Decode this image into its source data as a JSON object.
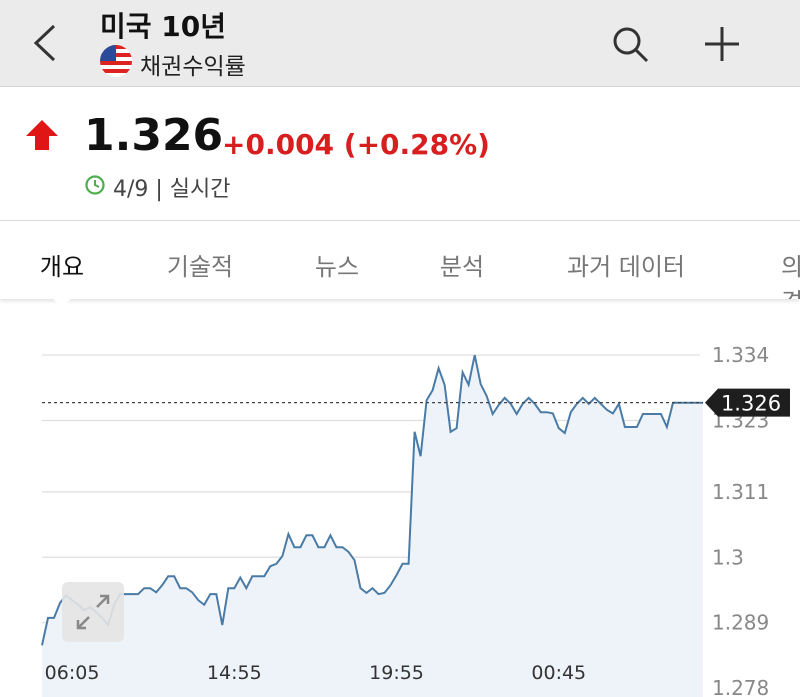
{
  "header": {
    "title": "미국 10년",
    "subtitle": "채권수익률"
  },
  "quote": {
    "price": "1.326",
    "change": "+0.004 (+0.28%)",
    "date": "4/9 | 실시간"
  },
  "tabs": [
    "개요",
    "기술적",
    "뉴스",
    "분석",
    "과거 데이터",
    "의견"
  ],
  "chart_data": {
    "type": "line",
    "color": "#4a7ba6",
    "values": [
      1.2852,
      1.2898,
      1.2898,
      1.2923,
      1.2936,
      1.2928,
      1.292,
      1.2911,
      1.2916,
      1.2908,
      1.2898,
      1.2886,
      1.292,
      1.2938,
      1.2938,
      1.2938,
      1.2938,
      1.2948,
      1.2948,
      1.2941,
      1.2953,
      1.2968,
      1.2968,
      1.2948,
      1.2948,
      1.2941,
      1.2928,
      1.292,
      1.2938,
      1.2938,
      1.2886,
      1.2948,
      1.2948,
      1.2966,
      1.2948,
      1.2968,
      1.2968,
      1.2968,
      1.2985,
      1.2989,
      1.3002,
      1.3039,
      1.3017,
      1.3017,
      1.3037,
      1.3037,
      1.3017,
      1.3017,
      1.3037,
      1.3017,
      1.3017,
      1.3009,
      1.2995,
      1.2948,
      1.294,
      1.2948,
      1.2938,
      1.294,
      1.2953,
      1.297,
      1.2989,
      1.2989,
      1.3211,
      1.317,
      1.3264,
      1.3281,
      1.3318,
      1.329,
      1.3211,
      1.3217,
      1.3311,
      1.329,
      1.334,
      1.3291,
      1.3271,
      1.3241,
      1.3256,
      1.3268,
      1.3258,
      1.3241,
      1.3258,
      1.3268,
      1.3258,
      1.3244,
      1.3244,
      1.3242,
      1.3217,
      1.3209,
      1.3244,
      1.3258,
      1.3268,
      1.3258,
      1.3268,
      1.3258,
      1.3248,
      1.3242,
      1.3258,
      1.3219,
      1.3219,
      1.3219,
      1.3241,
      1.3241,
      1.3241,
      1.3241,
      1.3219,
      1.326,
      1.326,
      1.326,
      1.326,
      1.326,
      1.326
    ],
    "current_value": 1.326,
    "ylim": [
      1.2765,
      1.3399
    ],
    "yticks": [
      1.334,
      1.323,
      1.311,
      1.3,
      1.289,
      1.278
    ],
    "xticks": [
      {
        "value": 5,
        "label": "06:05"
      },
      {
        "value": 32,
        "label": "14:55"
      },
      {
        "value": 59,
        "label": "19:55"
      },
      {
        "value": 86,
        "label": "00:45"
      }
    ],
    "grid": true
  }
}
